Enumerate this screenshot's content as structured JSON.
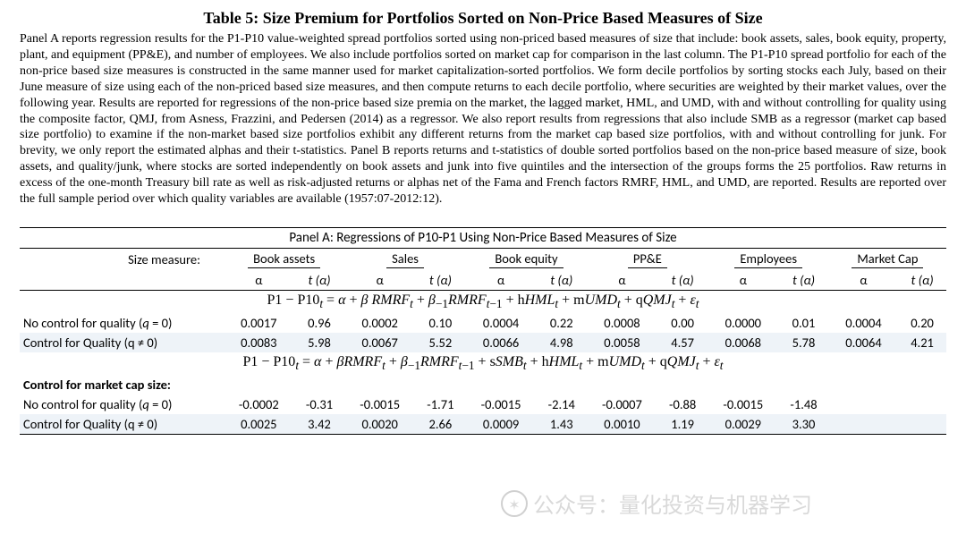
{
  "title": "Table 5:  Size Premium for Portfolios Sorted on Non-Price Based Measures of Size",
  "caption": "Panel A reports regression results for the P1-P10 value-weighted spread portfolios sorted using non-priced based measures of size that include: book assets, sales, book equity, property, plant, and equipment (PP&E), and number of employees. We also include portfolios sorted on market cap for comparison in the last column. The P1-P10 spread portfolio for each of the non-price based size measures is constructed in the same manner used for market capitalization-sorted portfolios. We form decile portfolios by sorting stocks each July, based on their June measure of size using each of the non-priced based size measures, and then compute returns to each decile portfolio, where securities are weighted by their market values, over the following year. Results are reported for regressions of the non-price based size premia on the market, the lagged market, HML, and UMD, with and without controlling for quality using the composite factor, QMJ, from Asness, Frazzini, and Pedersen (2014) as a regressor. We also report results from regressions that also include SMB as a regressor (market cap based size portfolio) to examine if the non-market based size portfolios exhibit any different returns from the market cap based size portfolios, with and without controlling for junk. For brevity, we only report the estimated alphas and their t-statistics. Panel B reports returns and t-statistics of double sorted portfolios based on the non-price based measure of size, book assets, and quality/junk, where stocks are sorted independently on book assets and junk into five quintiles and the intersection of the groups forms the 25 portfolios. Raw returns in excess of the one-month Treasury bill rate as well as risk-adjusted returns or alphas net of the Fama and French factors RMRF, HML, and UMD, are reported. Results are reported over the full sample period over which quality variables are available (1957:07-2012:12).",
  "panel_a_title": "Panel A:  Regressions of P10-P1 Using Non-Price Based Measures of Size",
  "row_header_label": "Size measure:",
  "columns": [
    "Book assets",
    "Sales",
    "Book equity",
    "PP&E",
    "Employees",
    "Market Cap"
  ],
  "sub_alpha": "α",
  "sub_t": "t (α)",
  "formula1_html": "P1 − P10<sub><i>t</i></sub> = <i>α</i> + <i>β</i> <i>RMRF</i><sub><i>t</i></sub> + <i>β</i><sub>−1</sub><i>RMRF</i><sub><i>t</i>−1</sub> + h<i>HML</i><sub><i>t</i></sub> + m<i>UMD</i><sub><i>t</i></sub> + q<i>QMJ</i><sub><i>t</i></sub> + <i>ε</i><sub><i>t</i></sub>",
  "formula2_html": "P1 − P10<sub><i>t</i></sub> = <i>α</i> + <i>βRMRF</i><sub><i>t</i></sub> + <i>β</i><sub>−1</sub><i>RMRF</i><sub><i>t</i>−1</sub> + s<i>SMB</i><sub><i>t</i></sub> + h<i>HML</i><sub><i>t</i></sub> + m<i>UMD</i><sub><i>t</i></sub> + q<i>QMJ</i><sub><i>t</i></sub> + <i>ε</i><sub><i>t</i></sub>",
  "block1_rows": [
    {
      "label": "No control for quality (q  = 0)",
      "shade": false,
      "vals": [
        "0.0017",
        "0.96",
        "0.0002",
        "0.10",
        "0.0004",
        "0.22",
        "0.0008",
        "0.00",
        "0.0000",
        "0.01",
        "0.0004",
        "0.20"
      ]
    },
    {
      "label": "Control for Quality (q ≠ 0)",
      "shade": true,
      "vals": [
        "0.0083",
        "5.98",
        "0.0067",
        "5.52",
        "0.0066",
        "4.98",
        "0.0058",
        "4.57",
        "0.0068",
        "5.78",
        "0.0064",
        "4.21"
      ]
    }
  ],
  "block2_title": "Control for market cap size:",
  "block2_rows": [
    {
      "label": "No control for quality (q  = 0)",
      "shade": false,
      "vals": [
        "-0.0002",
        "-0.31",
        "-0.0015",
        "-1.71",
        "-0.0015",
        "-2.14",
        "-0.0007",
        "-0.88",
        "-0.0015",
        "-1.48",
        "",
        ""
      ]
    },
    {
      "label": "Control for Quality (q ≠ 0)",
      "shade": true,
      "vals": [
        "0.0025",
        "3.42",
        "0.0020",
        "2.66",
        "0.0009",
        "1.43",
        "0.0010",
        "1.19",
        "0.0029",
        "3.30",
        "",
        ""
      ]
    }
  ],
  "watermark_text": "公众号：量化投资与机器学习",
  "colors": {
    "shade": "#eef3f8",
    "text": "#000000",
    "bg": "#ffffff"
  }
}
